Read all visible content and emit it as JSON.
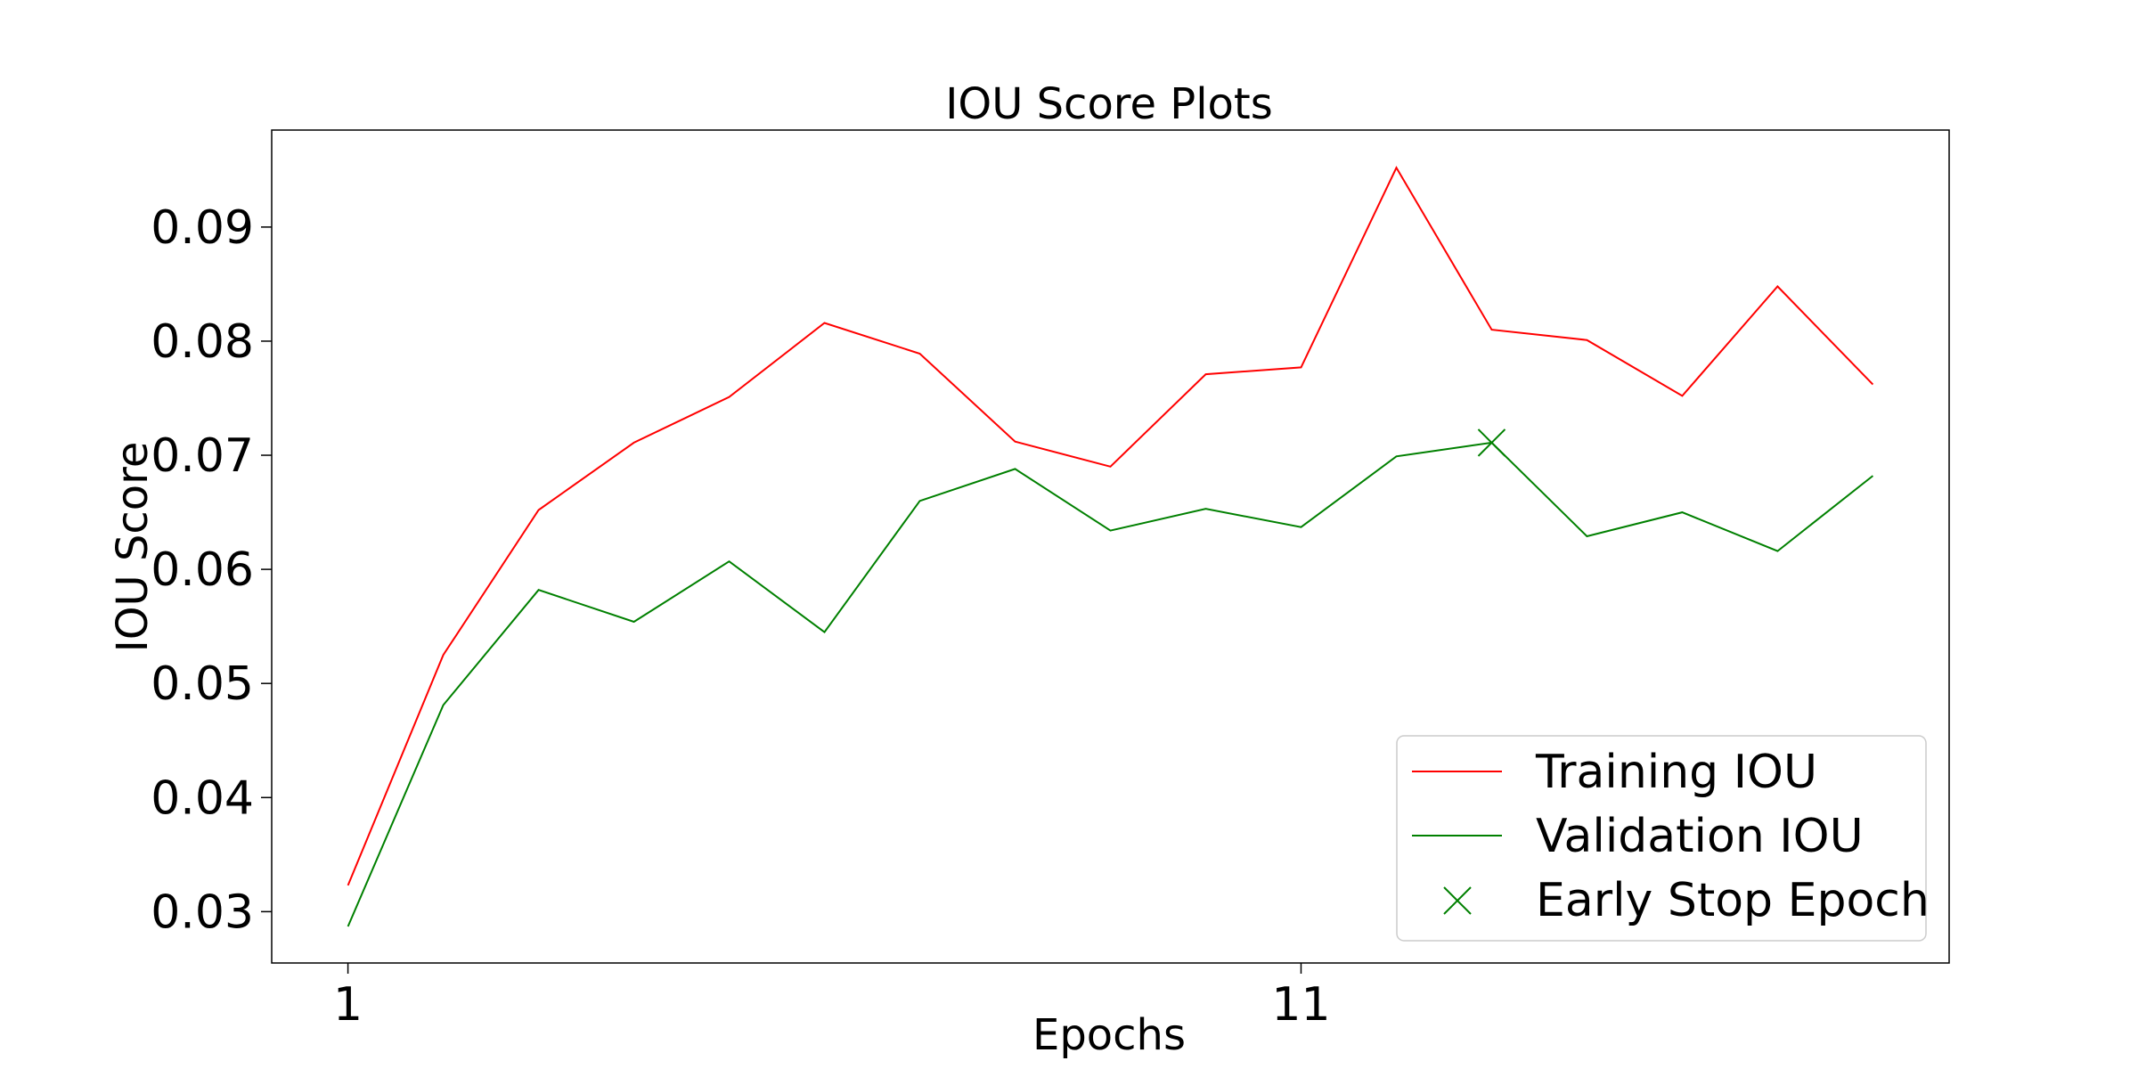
{
  "chart_data": {
    "type": "line",
    "title": "IOU Score Plots",
    "xlabel": "Epochs",
    "ylabel": "IOU Score",
    "x": [
      1,
      2,
      3,
      4,
      5,
      6,
      7,
      8,
      9,
      10,
      11,
      12,
      13,
      14,
      15,
      16,
      17
    ],
    "xticks": [
      1,
      11
    ],
    "yticks": [
      0.03,
      0.04,
      0.05,
      0.06,
      0.07,
      0.08,
      0.09
    ],
    "xlim": [
      0.2,
      17.8
    ],
    "ylim": [
      0.0255,
      0.0985
    ],
    "grid": false,
    "legend_position": "lower-right",
    "series": [
      {
        "name": "Training IOU",
        "color": "#ff0000",
        "values": [
          0.0323,
          0.0525,
          0.0652,
          0.0711,
          0.0751,
          0.0816,
          0.0789,
          0.0712,
          0.069,
          0.0771,
          0.0777,
          0.0952,
          0.081,
          0.0801,
          0.0752,
          0.0848,
          0.0762
        ]
      },
      {
        "name": "Validation IOU",
        "color": "#008000",
        "values": [
          0.0287,
          0.0481,
          0.0582,
          0.0554,
          0.0607,
          0.0545,
          0.066,
          0.0688,
          0.0634,
          0.0653,
          0.0637,
          0.0699,
          0.0711,
          0.0629,
          0.065,
          0.0616,
          0.0682
        ]
      }
    ],
    "markers": [
      {
        "name": "Early Stop Epoch",
        "x": 13,
        "y": 0.0711,
        "color": "#008000",
        "symbol": "x"
      }
    ]
  }
}
